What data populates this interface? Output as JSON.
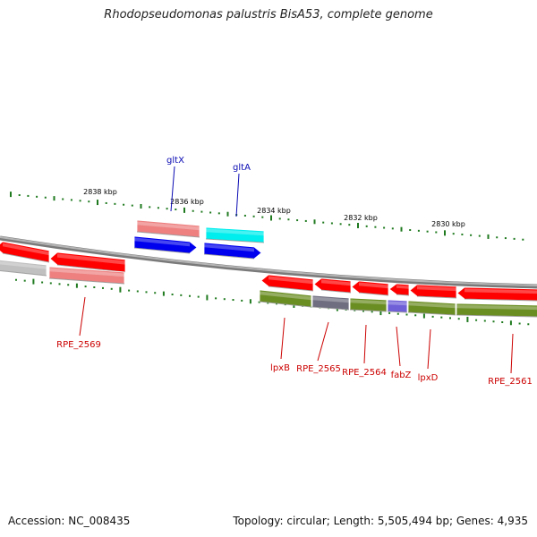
{
  "title": "Rhodopseudomonas palustris BisA53, complete genome",
  "footer": {
    "accession": "Accession: NC_008435",
    "summary": "Topology: circular; Length: 5,505,494 bp; Genes: 4,935"
  },
  "colors": {
    "backbone": "#8c8c8c",
    "tick": "#1f7a1f",
    "forward_label": "#0a0ab4",
    "reverse_label": "#cc0000",
    "red": "#ff0000",
    "pink": "#ee8080",
    "blue": "#0000ee",
    "cyan": "#00eeee",
    "gray": "#c0c0c0",
    "olive": "#6b8e23",
    "slate": "#6e6e80",
    "purple": "#7060d8"
  },
  "scale": {
    "unit": "kbp",
    "labels": [
      "2838 kbp",
      "2836 kbp",
      "2834 kbp",
      "2832 kbp",
      "2830 kbp"
    ]
  },
  "gene_labels": {
    "forward": [
      "gltX",
      "gltA"
    ],
    "reverse": [
      "RPE_2569",
      "lpxB",
      "RPE_2565",
      "RPE_2564",
      "fabZ",
      "lpxD",
      "RPE_2561"
    ]
  }
}
